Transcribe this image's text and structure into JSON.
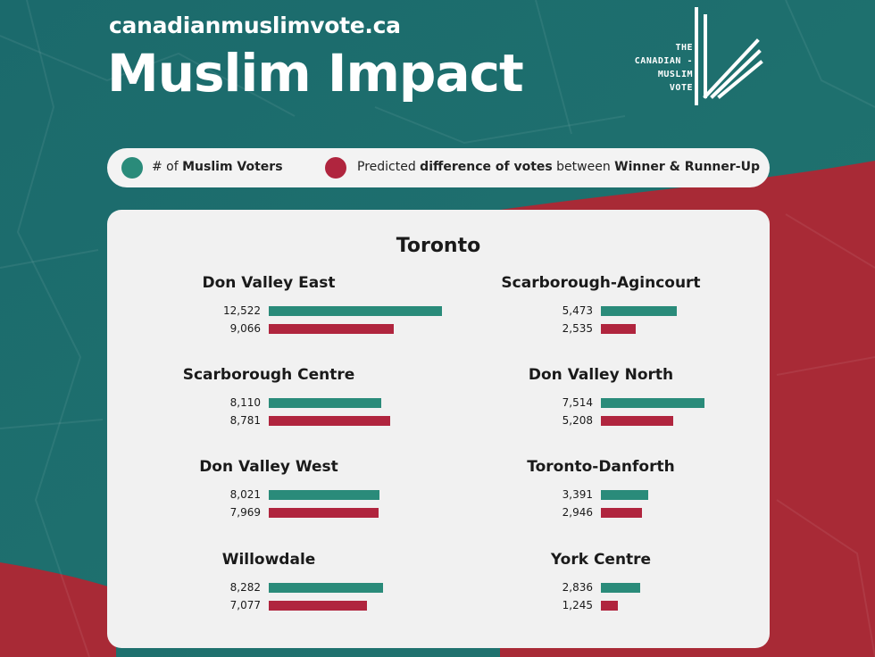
{
  "header": {
    "site_url": "canadianmuslimvote.ca",
    "title": "Muslim Impact"
  },
  "logo": {
    "lines": [
      "THE",
      "CANADIAN -",
      "MUSLIM",
      "VOTE"
    ]
  },
  "legend": {
    "voters_prefix": "# of ",
    "voters_bold": "Muslim Voters",
    "diff_prefix": "Predicted ",
    "diff_bold1": "difference of votes",
    "diff_mid": " between ",
    "diff_bold2": "Winner & Runner-Up"
  },
  "colors": {
    "voters": "#2a8b7a",
    "difference": "#b0253e",
    "background_teal": "#1e6f6e",
    "background_red": "#a82a36"
  },
  "chart_data": {
    "type": "bar",
    "title": "Toronto",
    "series_keys": [
      "Muslim Voters",
      "Predicted difference of votes between Winner & Runner-Up"
    ],
    "ridings": [
      {
        "name": "Don Valley East",
        "voters": 12522,
        "voters_label": "12,522",
        "difference": 9066,
        "difference_label": "9,066"
      },
      {
        "name": "Scarborough Centre",
        "voters": 8110,
        "voters_label": "8,110",
        "difference": 8781,
        "difference_label": "8,781"
      },
      {
        "name": "Don Valley West",
        "voters": 8021,
        "voters_label": "8,021",
        "difference": 7969,
        "difference_label": "7,969"
      },
      {
        "name": "Willowdale",
        "voters": 8282,
        "voters_label": "8,282",
        "difference": 7077,
        "difference_label": "7,077"
      },
      {
        "name": "Scarborough-Agincourt",
        "voters": 5473,
        "voters_label": "5,473",
        "difference": 2535,
        "difference_label": "2,535"
      },
      {
        "name": "Don Valley North",
        "voters": 7514,
        "voters_label": "7,514",
        "difference": 5208,
        "difference_label": "5,208"
      },
      {
        "name": "Toronto-Danforth",
        "voters": 3391,
        "voters_label": "3,391",
        "difference": 2946,
        "difference_label": "2,946"
      },
      {
        "name": "York Centre",
        "voters": 2836,
        "voters_label": "2,836",
        "difference": 1245,
        "difference_label": "1,245"
      }
    ]
  }
}
